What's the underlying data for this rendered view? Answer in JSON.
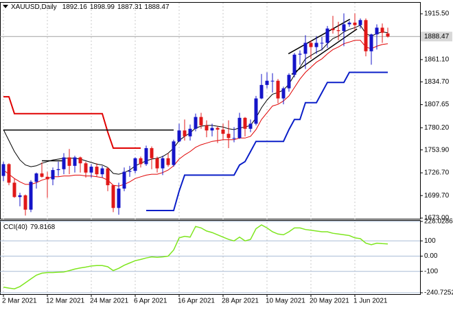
{
  "chart_data": {
    "type": "candlestick",
    "symbol": "XAUUSD,Daily",
    "categories": [
      "2 Mar 2021",
      null,
      null,
      null,
      null,
      null,
      null,
      null,
      "12 Mar 2021",
      null,
      null,
      null,
      null,
      null,
      null,
      null,
      "24 Mar 2021",
      null,
      null,
      null,
      null,
      null,
      null,
      null,
      "6 Apr 2021",
      null,
      null,
      null,
      null,
      null,
      null,
      null,
      "16 Apr 2021",
      null,
      null,
      null,
      null,
      null,
      null,
      null,
      "28 Apr 2021",
      null,
      null,
      null,
      null,
      null,
      null,
      null,
      "10 May 2021",
      null,
      null,
      null,
      null,
      null,
      null,
      null,
      "20 May 2021",
      null,
      null,
      null,
      null,
      null,
      null,
      null,
      "1 Jun 2021",
      null,
      null,
      null,
      null,
      null,
      null
    ],
    "open": [
      1723,
      1737,
      1715,
      1698,
      1700,
      1683,
      1716,
      1726,
      1722,
      1719,
      1730,
      1731,
      1745,
      1735,
      1745,
      1738,
      1727,
      1734,
      1725,
      1732,
      1712,
      1685,
      1708,
      1728,
      1729,
      1744,
      1737,
      1756,
      1744,
      1732,
      1744,
      1736,
      1764,
      1777,
      1770,
      1779,
      1793,
      1783,
      1777,
      1780,
      1778,
      1773,
      1768,
      1768,
      1792,
      1779,
      1785,
      1815,
      1831,
      1836,
      1836,
      1815,
      1827,
      1843,
      1867,
      1868,
      1881,
      1876,
      1881,
      1881,
      1898,
      1896,
      1895,
      1903,
      1905,
      1902,
      1908,
      1871,
      1891,
      1899,
      1892.16
    ],
    "high": [
      1740,
      1738,
      1720,
      1703,
      1701,
      1718,
      1727,
      1739,
      1728,
      1733,
      1740,
      1750,
      1755,
      1747,
      1746,
      1740,
      1737,
      1738,
      1735,
      1733,
      1712,
      1715,
      1733,
      1735,
      1745,
      1746,
      1759,
      1758,
      1746,
      1747,
      1750,
      1766,
      1785,
      1790,
      1784,
      1797,
      1798,
      1789,
      1785,
      1782,
      1785,
      1789,
      1781,
      1798,
      1793,
      1790,
      1818,
      1844,
      1846,
      1845,
      1838,
      1829,
      1845,
      1869,
      1872,
      1890,
      1884,
      1889,
      1888,
      1901,
      1913,
      1906,
      1916,
      1907,
      1916,
      1910,
      1910,
      1892,
      1903,
      1904,
      1898.99
    ],
    "low": [
      1717,
      1712,
      1697,
      1687,
      1676,
      1680,
      1708,
      1721,
      1697,
      1712,
      1723,
      1725,
      1725,
      1727,
      1727,
      1721,
      1721,
      1722,
      1721,
      1705,
      1680,
      1677,
      1705,
      1722,
      1726,
      1733,
      1735,
      1731,
      1727,
      1724,
      1734,
      1734,
      1763,
      1765,
      1765,
      1776,
      1779,
      1769,
      1770,
      1762,
      1766,
      1756,
      1763,
      1767,
      1770,
      1775,
      1783,
      1814,
      1827,
      1822,
      1809,
      1808,
      1823,
      1840,
      1855,
      1850,
      1862,
      1868,
      1872,
      1875,
      1892,
      1884,
      1877,
      1900,
      1896,
      1898,
      1865,
      1855,
      1873,
      1881,
      1887.31
    ],
    "close": [
      1737,
      1715,
      1698,
      1700,
      1683,
      1716,
      1726,
      1722,
      1719,
      1730,
      1731,
      1745,
      1735,
      1745,
      1738,
      1727,
      1734,
      1725,
      1732,
      1712,
      1685,
      1708,
      1728,
      1729,
      1744,
      1737,
      1756,
      1744,
      1732,
      1744,
      1736,
      1764,
      1777,
      1770,
      1779,
      1793,
      1783,
      1777,
      1780,
      1778,
      1773,
      1768,
      1768,
      1792,
      1779,
      1785,
      1815,
      1831,
      1836,
      1836,
      1815,
      1827,
      1843,
      1867,
      1868,
      1881,
      1876,
      1881,
      1881,
      1898,
      1896,
      1895,
      1903,
      1905,
      1902,
      1908,
      1871,
      1891,
      1899,
      1893,
      1888.47
    ],
    "up_color": "#1414c8",
    "down_color": "#e01818",
    "overlays": [
      {
        "color": "#e00000",
        "line_width": 2,
        "values": [
          1817,
          1817,
          1797,
          1797,
          1797,
          1797,
          1797,
          1797,
          1797,
          1797,
          1797,
          1797,
          1797,
          1797,
          1797,
          1797,
          1797,
          1797,
          1797,
          1775,
          1756,
          1756,
          1756,
          1756,
          1756,
          1756,
          null,
          null,
          null,
          null,
          null,
          null,
          null,
          null,
          null,
          null,
          null,
          null,
          null,
          null,
          null,
          null,
          null,
          null,
          null,
          null,
          null,
          null,
          null,
          null,
          null,
          null,
          null,
          null,
          null,
          null,
          null,
          null,
          null,
          null,
          null,
          null,
          null,
          null,
          null,
          null,
          null,
          null,
          null,
          null,
          null
        ]
      },
      {
        "color": "#0a1ec8",
        "line_width": 2,
        "values": [
          null,
          null,
          null,
          null,
          null,
          null,
          null,
          null,
          null,
          null,
          null,
          null,
          null,
          null,
          null,
          null,
          null,
          null,
          null,
          null,
          null,
          null,
          null,
          null,
          null,
          null,
          1682,
          1682,
          1682,
          1682,
          1682,
          1682,
          1705,
          1724,
          1724,
          1724,
          1724,
          1724,
          1724,
          1724,
          1724,
          1724,
          1724,
          1736,
          1740,
          1752,
          1764,
          1764,
          1764,
          1764,
          1764,
          1764,
          1778,
          1790,
          1790,
          1810,
          1810,
          1810,
          1822,
          1834,
          1834,
          1834,
          1834,
          1846,
          1846,
          1846,
          1846,
          1846,
          1846,
          1846,
          1846
        ]
      },
      {
        "color": "#e00000",
        "line_width": 1,
        "values": [
          1730,
          1725,
          1720,
          1716,
          1713,
          1713,
          1715,
          1718,
          1720,
          1722,
          1722,
          1723,
          1723,
          1724,
          1724,
          1723,
          1723,
          1722,
          1721,
          1718,
          1712,
          1711,
          1713,
          1716,
          1720,
          1722,
          1724,
          1725,
          1725,
          1727,
          1730,
          1735,
          1743,
          1748,
          1752,
          1757,
          1760,
          1762,
          1764,
          1765,
          1766,
          1766,
          1766,
          1768,
          1768,
          1770,
          1778,
          1790,
          1798,
          1806,
          1808,
          1812,
          1818,
          1828,
          1838,
          1846,
          1852,
          1858,
          1862,
          1868,
          1873,
          1876,
          1880,
          1882,
          1884,
          1884,
          1876,
          1874,
          1877,
          1879,
          1880
        ]
      },
      {
        "color": "#000000",
        "line_width": 1,
        "values": [
          1778,
          1765,
          1752,
          1742,
          1736,
          1734,
          1735,
          1738,
          1740,
          1742,
          1743,
          1744,
          1744,
          1744,
          1743,
          1741,
          1739,
          1737,
          1736,
          1733,
          1726,
          1725,
          1727,
          1730,
          1735,
          1738,
          1741,
          1743,
          1744,
          1746,
          1750,
          1756,
          1765,
          1770,
          1774,
          1780,
          1782,
          1783,
          1783,
          1782,
          1781,
          1779,
          1778,
          1780,
          1781,
          1783,
          1792,
          1804,
          1813,
          1820,
          1822,
          1825,
          1832,
          1843,
          1852,
          1862,
          1866,
          1870,
          1873,
          1880,
          1886,
          1889,
          1894,
          1897,
          1899,
          1902,
          1892,
          1889,
          1892,
          1894,
          1893
        ]
      }
    ],
    "lines": [
      {
        "color": "#000000",
        "x": [
          0,
          31
        ],
        "y": [
          1777.5,
          1777.5
        ]
      },
      {
        "color": "#000000",
        "x": [
          7,
          11
        ],
        "y": [
          1741,
          1741
        ]
      },
      {
        "color": "#000000",
        "x": [
          51.9,
          63.1
        ],
        "y": [
          1868,
          1909
        ]
      },
      {
        "color": "#000000",
        "x": [
          52.5,
          64.4
        ],
        "y": [
          1843.6,
          1897.5
        ]
      }
    ],
    "ylim": [
      1672.2,
      1928.6
    ],
    "yticks": [
      {
        "value": 1915.5,
        "label": "1915.50"
      },
      {
        "value": 1861.1,
        "label": "1861.10"
      },
      {
        "value": 1834.7,
        "label": "1834.70"
      },
      {
        "value": 1807.65,
        "label": "1807.65"
      },
      {
        "value": 1780.2,
        "label": "1780.20"
      },
      {
        "value": 1753.9,
        "label": "1753.90"
      },
      {
        "value": 1726.7,
        "label": "1726.70"
      },
      {
        "value": 1699.7,
        "label": "1699.70"
      },
      {
        "value": 1673,
        "label": "1673.00"
      }
    ],
    "indicator": {
      "name": "CCI(40)",
      "color": "#7ee61e",
      "values": [
        -204,
        -210,
        -215,
        -200,
        -175,
        -150,
        -125,
        -112,
        -108,
        -108,
        -106,
        -104,
        -95,
        -85,
        -78,
        -72,
        -65,
        -62,
        -62,
        -70,
        -95,
        -80,
        -60,
        -45,
        -30,
        -22,
        -12,
        -5,
        -8,
        -5,
        0,
        40,
        120,
        130,
        125,
        195,
        185,
        165,
        155,
        140,
        125,
        110,
        100,
        125,
        100,
        110,
        180,
        205,
        185,
        160,
        145,
        140,
        160,
        185,
        185,
        175,
        170,
        165,
        160,
        160,
        150,
        145,
        140,
        135,
        120,
        115,
        85,
        75,
        85,
        82,
        79.8168
      ],
      "ylim": [
        -250,
        232
      ],
      "yticks": [
        228.0286,
        100,
        {
          "value": 0,
          "label": "0.00"
        },
        -100,
        -240.7252
      ],
      "grid": true
    }
  }
}
